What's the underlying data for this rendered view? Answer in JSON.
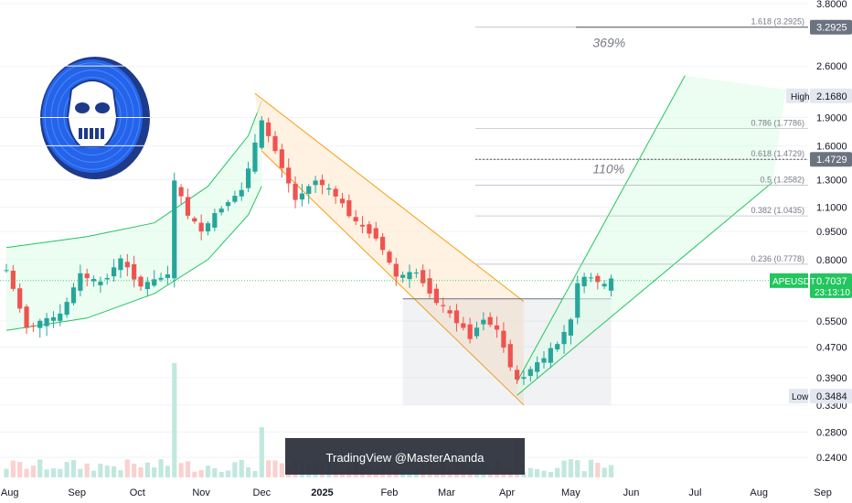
{
  "chart_data": {
    "type": "candlestick",
    "symbol": "APEUSDT",
    "scale": "log",
    "colors": {
      "up": "#26a69a",
      "down": "#ef5350",
      "accent": "#22c55e",
      "channel_fill_up": "#dcfce7",
      "channel_fill_down": "#ffedd5",
      "channel_line_down": "#f59e0b",
      "label_bg": "#e3e8f0",
      "current_price_bg": "#22c55e"
    },
    "price_axis": {
      "ylim": [
        0.21,
        3.85
      ],
      "ticks": [
        3.8,
        2.6,
        1.9,
        1.6,
        1.3,
        1.1,
        0.95,
        0.8,
        0.55,
        0.47,
        0.39,
        0.33,
        0.28,
        0.24
      ],
      "tick_labels": [
        "3.8000",
        "2.6000",
        "1.9000",
        "1.6000",
        "1.3000",
        "1.1000",
        "0.9500",
        "0.8000",
        "0.5500",
        "0.4700",
        "0.3900",
        "0.3300",
        "0.2800",
        "0.2400"
      ]
    },
    "time_axis": {
      "labels": [
        {
          "t": 0.5,
          "text": "Aug"
        },
        {
          "t": 10.5,
          "text": "Sep"
        },
        {
          "t": 19.5,
          "text": "Oct"
        },
        {
          "t": 29,
          "text": "Nov"
        },
        {
          "t": 38,
          "text": "Dec"
        },
        {
          "t": 47,
          "text": "2025",
          "bold": true
        },
        {
          "t": 57,
          "text": "Feb"
        },
        {
          "t": 65.5,
          "text": "Mar"
        },
        {
          "t": 74.5,
          "text": "Apr"
        },
        {
          "t": 84,
          "text": "May"
        },
        {
          "t": 93,
          "text": "Jun"
        },
        {
          "t": 102.5,
          "text": "Jul"
        },
        {
          "t": 112,
          "text": "Aug"
        },
        {
          "t": 121.5,
          "text": "Sep"
        }
      ]
    },
    "anchors": [
      {
        "t": 0,
        "p": 0.75
      },
      {
        "t": 3,
        "p": 0.53
      },
      {
        "t": 8,
        "p": 0.57
      },
      {
        "t": 11,
        "p": 0.73
      },
      {
        "t": 14,
        "p": 0.69
      },
      {
        "t": 17,
        "p": 0.8
      },
      {
        "t": 20,
        "p": 0.68
      },
      {
        "t": 24,
        "p": 0.73
      },
      {
        "t": 25,
        "p": 1.28
      },
      {
        "t": 27,
        "p": 1.05
      },
      {
        "t": 29,
        "p": 0.95
      },
      {
        "t": 32,
        "p": 1.1
      },
      {
        "t": 35,
        "p": 1.22
      },
      {
        "t": 38,
        "p": 1.85
      },
      {
        "t": 40,
        "p": 1.55
      },
      {
        "t": 43,
        "p": 1.15
      },
      {
        "t": 46,
        "p": 1.3
      },
      {
        "t": 49,
        "p": 1.18
      },
      {
        "t": 52,
        "p": 1.0
      },
      {
        "t": 55,
        "p": 0.92
      },
      {
        "t": 58,
        "p": 0.72
      },
      {
        "t": 61,
        "p": 0.74
      },
      {
        "t": 64,
        "p": 0.62
      },
      {
        "t": 67,
        "p": 0.55
      },
      {
        "t": 69,
        "p": 0.5
      },
      {
        "t": 71,
        "p": 0.56
      },
      {
        "t": 73,
        "p": 0.52
      },
      {
        "t": 75,
        "p": 0.42
      },
      {
        "t": 76,
        "p": 0.38
      },
      {
        "t": 78,
        "p": 0.41
      },
      {
        "t": 80,
        "p": 0.44
      },
      {
        "t": 82,
        "p": 0.48
      },
      {
        "t": 84,
        "p": 0.55
      },
      {
        "t": 85,
        "p": 0.7
      },
      {
        "t": 87,
        "p": 0.72
      },
      {
        "t": 89,
        "p": 0.68
      },
      {
        "t": 90,
        "p": 0.7037
      }
    ],
    "fib_levels": [
      {
        "ratio": "1.618",
        "price": 3.2925,
        "label": "1.618 (3.2925)"
      },
      {
        "ratio": "0.786",
        "price": 1.7786,
        "label": "0.786 (1.7786)"
      },
      {
        "ratio": "0.618",
        "price": 1.4729,
        "label": "0.618 (1.4729)"
      },
      {
        "ratio": "0.5",
        "price": 1.2582,
        "label": "0.5 (1.2582)"
      },
      {
        "ratio": "0.382",
        "price": 1.0435,
        "label": "0.382 (1.0435)"
      },
      {
        "ratio": "0.236",
        "price": 0.7778,
        "label": "0.236 (0.7778)"
      }
    ],
    "annotations": [
      {
        "text": "369%",
        "t": 84,
        "p": 3.0
      },
      {
        "text": "110%",
        "t": 84,
        "p": 1.39
      }
    ],
    "price_labels": {
      "high_label": "High",
      "high_value": "2.1680",
      "high_price": 2.168,
      "low_label": "Low",
      "low_value": "0.3484",
      "low_price": 0.3484,
      "target_value": "3.2925",
      "target_price": 3.2925,
      "fib_value": "1.4729",
      "fib_price": 1.4729,
      "current_symbol": "APEUSDT",
      "current_value": "0.7037",
      "current_price": 0.7037,
      "countdown": "23:13:10"
    },
    "watermark": "TradingView @MasterAnanda",
    "logo_icon": "ape-skull-coin-icon"
  }
}
